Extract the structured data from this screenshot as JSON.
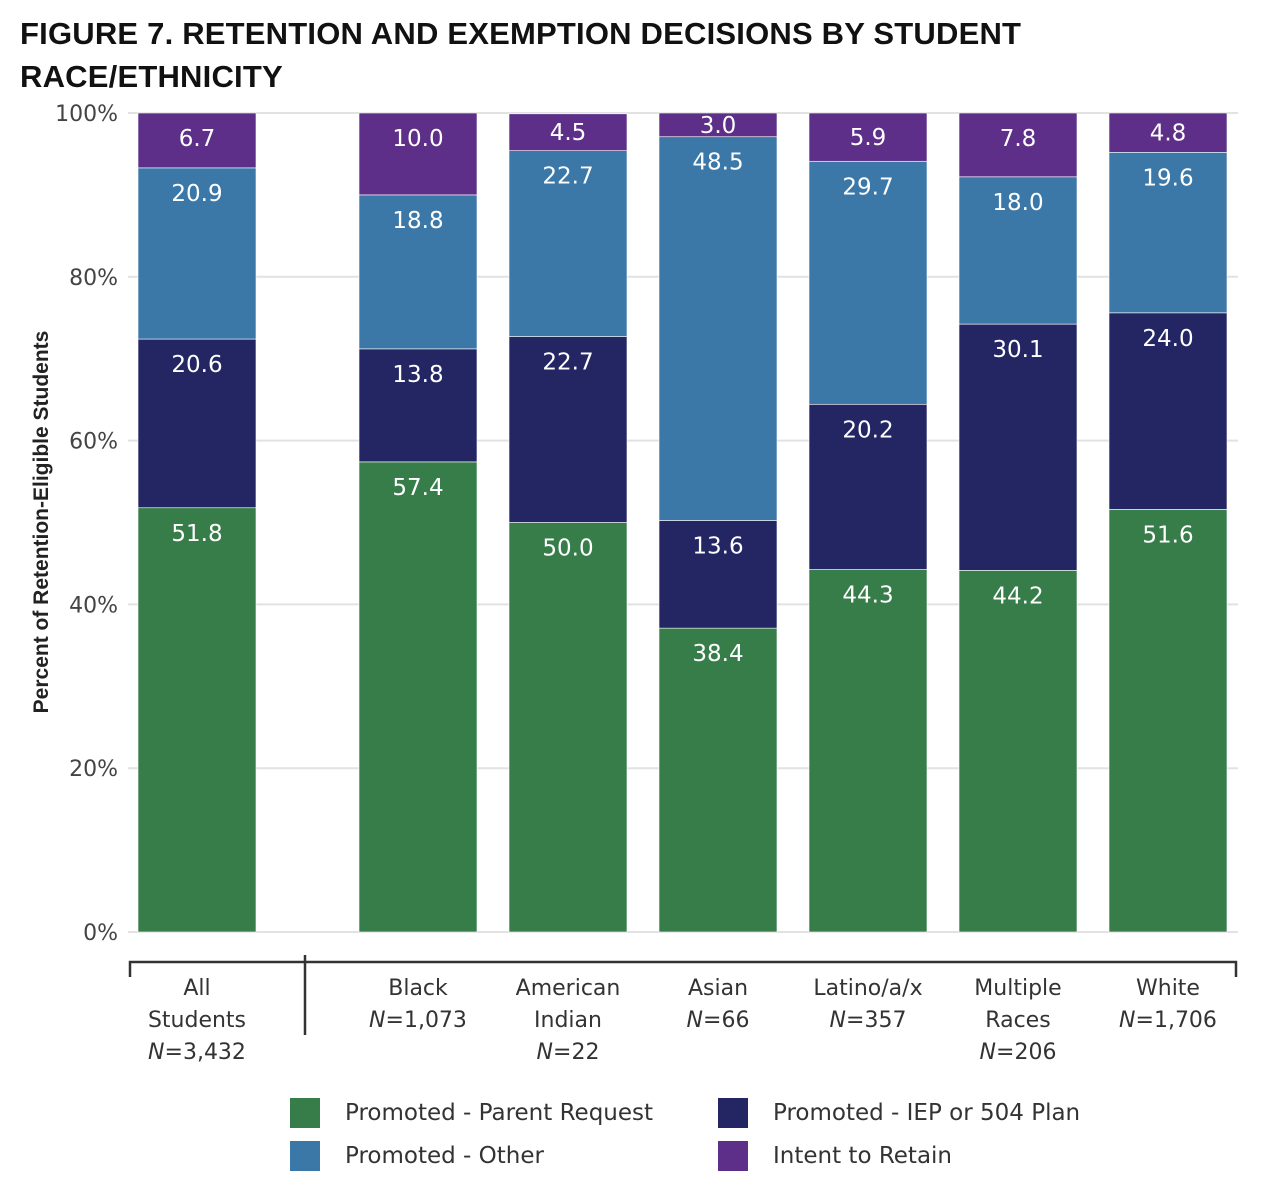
{
  "chart_data": {
    "type": "bar",
    "stacked": true,
    "title": "FIGURE 7. RETENTION AND EXEMPTION DECISIONS BY STUDENT RACE/ETHNICITY",
    "ylabel": "Percent of Retention-Eligible Students",
    "ylim": [
      0,
      100
    ],
    "yticks": [
      "0%",
      "20%",
      "40%",
      "60%",
      "80%",
      "100%"
    ],
    "grid": true,
    "legend_position": "bottom",
    "categories": [
      {
        "lines": [
          "All",
          "Students"
        ],
        "n_prefix": "N",
        "n_value": "=3,432"
      },
      {
        "lines": [
          "Black"
        ],
        "n_prefix": "N",
        "n_value": "=1,073"
      },
      {
        "lines": [
          "American",
          "Indian"
        ],
        "n_prefix": "N",
        "n_value": "=22"
      },
      {
        "lines": [
          "Asian"
        ],
        "n_prefix": "N",
        "n_value": "=66"
      },
      {
        "lines": [
          "Latino/a/x"
        ],
        "n_prefix": "N",
        "n_value": "=357"
      },
      {
        "lines": [
          "Multiple",
          "Races"
        ],
        "n_prefix": "N",
        "n_value": "=206"
      },
      {
        "lines": [
          "White"
        ],
        "n_prefix": "N",
        "n_value": "=1,706"
      }
    ],
    "series": [
      {
        "name": "Promoted - Parent Request",
        "color": "#377d4a",
        "values": [
          51.8,
          57.4,
          50.0,
          38.4,
          44.3,
          44.2,
          51.6
        ]
      },
      {
        "name": "Promoted - IEP or 504 Plan",
        "color": "#242664",
        "values": [
          20.6,
          13.8,
          22.7,
          13.6,
          20.2,
          30.1,
          24.0
        ]
      },
      {
        "name": "Promoted - Other",
        "color": "#3b78a8",
        "values": [
          20.9,
          18.8,
          22.7,
          48.5,
          29.7,
          18.0,
          19.6
        ]
      },
      {
        "name": "Intent to Retain",
        "color": "#5e2f88",
        "values": [
          6.7,
          10.0,
          4.5,
          3.0,
          5.9,
          7.8,
          4.8
        ]
      }
    ],
    "legend_order": [
      0,
      1,
      2,
      3
    ]
  }
}
